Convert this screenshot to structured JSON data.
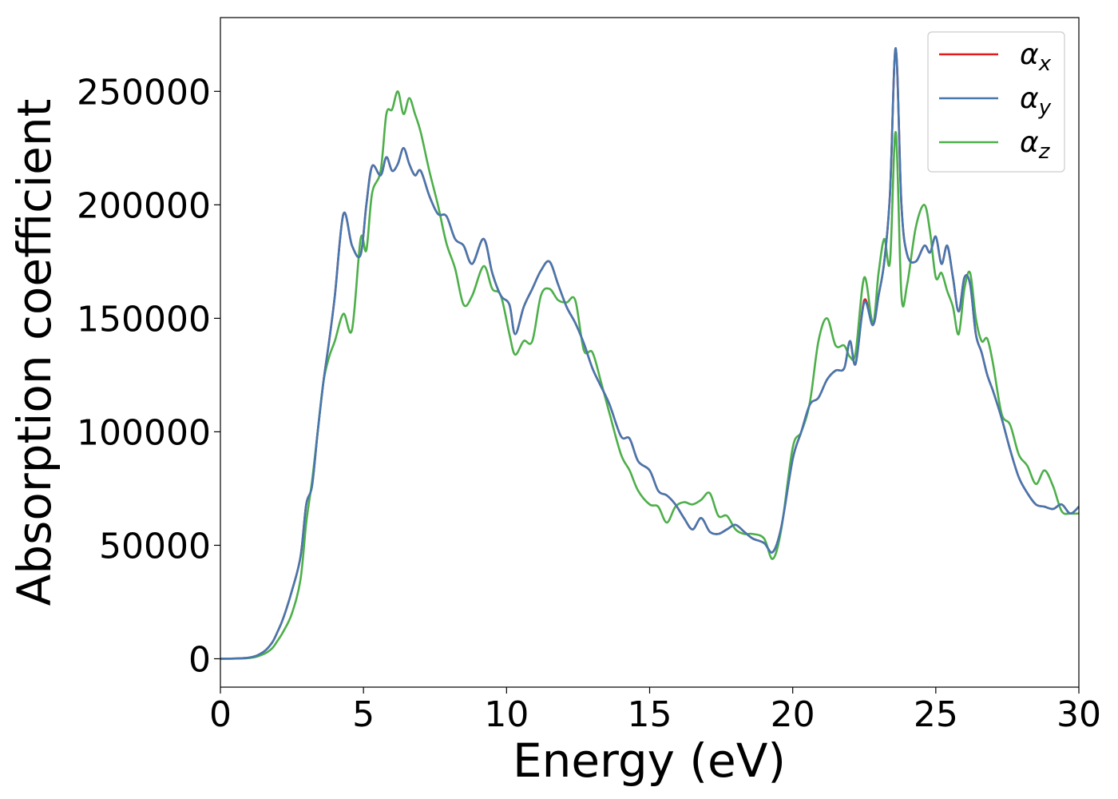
{
  "chart_data": {
    "type": "line",
    "title": "",
    "xlabel": "Energy (eV)",
    "ylabel": "Absorption coefficient",
    "xlim": [
      0,
      30
    ],
    "ylim": [
      -12500,
      282500
    ],
    "xticks": [
      0,
      5,
      10,
      15,
      20,
      25,
      30
    ],
    "xtick_labels": [
      "0",
      "5",
      "10",
      "15",
      "20",
      "25",
      "30"
    ],
    "yticks": [
      0,
      50000,
      100000,
      150000,
      200000,
      250000
    ],
    "ytick_labels": [
      "0",
      "50000",
      "100000",
      "150000",
      "200000",
      "250000"
    ],
    "grid": false,
    "legend_position": "top-right",
    "series": [
      {
        "name": "α_x",
        "legend_base": "α",
        "legend_sub": "x",
        "color": "#e41a1c",
        "x": [
          0,
          1.0,
          1.5,
          1.8,
          2.0,
          2.2,
          2.5,
          2.8,
          3.0,
          3.2,
          3.4,
          3.6,
          3.8,
          4.0,
          4.3,
          4.6,
          4.9,
          5.1,
          5.3,
          5.6,
          5.8,
          6.0,
          6.2,
          6.4,
          6.6,
          6.8,
          7.0,
          7.3,
          7.6,
          7.9,
          8.2,
          8.5,
          8.8,
          9.2,
          9.5,
          9.8,
          10.1,
          10.3,
          10.6,
          10.9,
          11.2,
          11.5,
          11.8,
          12.1,
          12.4,
          12.7,
          13.0,
          13.3,
          13.6,
          14.0,
          14.3,
          14.6,
          15.0,
          15.3,
          15.6,
          15.9,
          16.2,
          16.5,
          16.8,
          17.1,
          17.4,
          17.7,
          18.0,
          18.3,
          18.6,
          19.0,
          19.3,
          19.6,
          20.0,
          20.3,
          20.6,
          20.9,
          21.2,
          21.5,
          21.8,
          22.0,
          22.2,
          22.5,
          22.8,
          23.0,
          23.2,
          23.4,
          23.6,
          23.8,
          24.0,
          24.3,
          24.6,
          24.8,
          25.0,
          25.2,
          25.4,
          25.6,
          25.8,
          26.0,
          26.2,
          26.4,
          26.6,
          26.8,
          27.0,
          27.3,
          27.6,
          27.9,
          28.2,
          28.5,
          28.8,
          29.1,
          29.4,
          29.7,
          30.0
        ],
        "values": [
          0,
          500,
          3000,
          7000,
          12000,
          18000,
          30000,
          45000,
          68000,
          76000,
          100000,
          122000,
          140000,
          160000,
          196000,
          182000,
          178000,
          200000,
          217000,
          213000,
          221000,
          215000,
          218000,
          225000,
          218000,
          213000,
          215000,
          204000,
          196000,
          195000,
          185000,
          182000,
          174000,
          185000,
          170000,
          160000,
          156000,
          143000,
          155000,
          163000,
          171000,
          175000,
          165000,
          155000,
          148000,
          139000,
          128000,
          120000,
          112000,
          98000,
          97000,
          87000,
          83000,
          74000,
          72000,
          68000,
          62000,
          57000,
          62000,
          56000,
          55000,
          57000,
          59000,
          56000,
          53000,
          51000,
          47000,
          58000,
          88000,
          100000,
          112000,
          115000,
          123000,
          127000,
          128000,
          140000,
          130000,
          158000,
          147000,
          160000,
          175000,
          205000,
          269000,
          200000,
          178000,
          175000,
          182000,
          179000,
          186000,
          174000,
          182000,
          168000,
          153000,
          168000,
          165000,
          143000,
          135000,
          125000,
          118000,
          106000,
          92000,
          80000,
          73000,
          68000,
          67000,
          66000,
          68000,
          64000,
          67000
        ]
      },
      {
        "name": "α_y",
        "legend_base": "α",
        "legend_sub": "y",
        "color": "#4677ae",
        "x": [
          0,
          1.0,
          1.5,
          1.8,
          2.0,
          2.2,
          2.5,
          2.8,
          3.0,
          3.2,
          3.4,
          3.6,
          3.8,
          4.0,
          4.3,
          4.6,
          4.9,
          5.1,
          5.3,
          5.6,
          5.8,
          6.0,
          6.2,
          6.4,
          6.6,
          6.8,
          7.0,
          7.3,
          7.6,
          7.9,
          8.2,
          8.5,
          8.8,
          9.2,
          9.5,
          9.8,
          10.1,
          10.3,
          10.6,
          10.9,
          11.2,
          11.5,
          11.8,
          12.1,
          12.4,
          12.7,
          13.0,
          13.3,
          13.6,
          14.0,
          14.3,
          14.6,
          15.0,
          15.3,
          15.6,
          15.9,
          16.2,
          16.5,
          16.8,
          17.1,
          17.4,
          17.7,
          18.0,
          18.3,
          18.6,
          19.0,
          19.3,
          19.6,
          20.0,
          20.3,
          20.6,
          20.9,
          21.2,
          21.5,
          21.8,
          22.0,
          22.2,
          22.5,
          22.8,
          23.0,
          23.2,
          23.4,
          23.6,
          23.8,
          24.0,
          24.3,
          24.6,
          24.8,
          25.0,
          25.2,
          25.4,
          25.6,
          25.8,
          26.0,
          26.2,
          26.4,
          26.6,
          26.8,
          27.0,
          27.3,
          27.6,
          27.9,
          28.2,
          28.5,
          28.8,
          29.1,
          29.4,
          29.7,
          30.0
        ],
        "values": [
          0,
          500,
          3000,
          7000,
          12000,
          18000,
          30000,
          45000,
          68000,
          76000,
          100000,
          122000,
          140000,
          160000,
          196000,
          182000,
          178000,
          200000,
          217000,
          213000,
          221000,
          215000,
          218000,
          225000,
          218000,
          213000,
          215000,
          204000,
          196000,
          195000,
          185000,
          182000,
          174000,
          185000,
          170000,
          160000,
          156000,
          143000,
          155000,
          163000,
          171000,
          175000,
          165000,
          155000,
          148000,
          139000,
          128000,
          120000,
          112000,
          98000,
          97000,
          87000,
          83000,
          74000,
          72000,
          68000,
          62000,
          57000,
          62000,
          56000,
          55000,
          57000,
          59000,
          56000,
          53000,
          51000,
          47000,
          58000,
          88000,
          100000,
          112000,
          115000,
          123000,
          127000,
          128000,
          140000,
          130000,
          157000,
          147000,
          160000,
          175000,
          205000,
          269000,
          200000,
          178000,
          175000,
          182000,
          179000,
          186000,
          174000,
          182000,
          168000,
          153000,
          168000,
          165000,
          143000,
          135000,
          125000,
          118000,
          106000,
          92000,
          80000,
          73000,
          68000,
          67000,
          66000,
          68000,
          64000,
          67000
        ]
      },
      {
        "name": "α_z",
        "legend_base": "α",
        "legend_sub": "z",
        "color": "#4daf4a",
        "x": [
          0,
          1.0,
          1.5,
          1.8,
          2.0,
          2.2,
          2.5,
          2.8,
          3.0,
          3.2,
          3.4,
          3.6,
          3.8,
          4.0,
          4.3,
          4.6,
          4.9,
          5.1,
          5.3,
          5.6,
          5.8,
          6.0,
          6.2,
          6.4,
          6.6,
          6.8,
          7.0,
          7.3,
          7.6,
          7.9,
          8.2,
          8.5,
          8.8,
          9.2,
          9.5,
          9.8,
          10.1,
          10.3,
          10.6,
          10.9,
          11.2,
          11.5,
          11.8,
          12.1,
          12.4,
          12.7,
          13.0,
          13.3,
          13.6,
          14.0,
          14.3,
          14.6,
          15.0,
          15.3,
          15.6,
          15.9,
          16.2,
          16.5,
          16.8,
          17.1,
          17.4,
          17.7,
          18.0,
          18.3,
          18.6,
          19.0,
          19.3,
          19.6,
          20.0,
          20.3,
          20.6,
          20.9,
          21.2,
          21.5,
          21.8,
          22.0,
          22.2,
          22.5,
          22.8,
          23.0,
          23.2,
          23.4,
          23.6,
          23.8,
          24.0,
          24.3,
          24.6,
          24.8,
          25.0,
          25.2,
          25.4,
          25.6,
          25.8,
          26.0,
          26.2,
          26.4,
          26.6,
          26.8,
          27.0,
          27.3,
          27.6,
          27.9,
          28.2,
          28.5,
          28.8,
          29.1,
          29.4,
          29.7,
          30.0
        ],
        "values": [
          0,
          300,
          2000,
          4500,
          8000,
          12000,
          20000,
          35000,
          60000,
          78000,
          100000,
          122000,
          133000,
          140000,
          152000,
          145000,
          185000,
          180000,
          205000,
          215000,
          240000,
          242000,
          250000,
          240000,
          247000,
          240000,
          232000,
          215000,
          200000,
          183000,
          172000,
          156000,
          160000,
          173000,
          163000,
          160000,
          143000,
          134000,
          140000,
          140000,
          160000,
          163000,
          158000,
          157000,
          158000,
          136000,
          135000,
          122000,
          108000,
          90000,
          83000,
          74000,
          68000,
          67000,
          60000,
          67000,
          69000,
          68000,
          70000,
          73000,
          63000,
          63000,
          57000,
          55000,
          55000,
          53000,
          44000,
          57000,
          93000,
          100000,
          113000,
          140000,
          150000,
          138000,
          138000,
          133000,
          135000,
          168000,
          148000,
          170000,
          185000,
          175000,
          232000,
          160000,
          165000,
          190000,
          200000,
          188000,
          168000,
          170000,
          162000,
          155000,
          143000,
          163000,
          170000,
          150000,
          140000,
          141000,
          130000,
          108000,
          103000,
          90000,
          85000,
          77000,
          83000,
          76000,
          65000,
          64000,
          64000
        ]
      }
    ]
  }
}
